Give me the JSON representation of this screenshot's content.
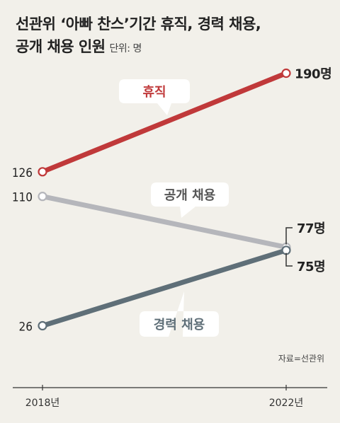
{
  "title_line1": "선관위 ‘아빠 찬스’기간 휴직, 경력 채용,",
  "title_line2": "공개 채용 인원",
  "unit": "단위: 명",
  "source": "자료=선관위",
  "colors": {
    "leave": "#c0393a",
    "public": "#b5b6bb",
    "career": "#5f6f78",
    "background": "#f2f0ea"
  },
  "chart_data": {
    "type": "line",
    "x": [
      "2018년",
      "2022년"
    ],
    "series": [
      {
        "name": "휴직",
        "values": [
          126,
          190
        ],
        "value_labels": [
          "126",
          "190명"
        ]
      },
      {
        "name": "공개 채용",
        "values": [
          110,
          77
        ],
        "value_labels": [
          "110",
          "77명"
        ]
      },
      {
        "name": "경력 채용",
        "values": [
          26,
          75
        ],
        "value_labels": [
          "26",
          "75명"
        ]
      }
    ]
  }
}
